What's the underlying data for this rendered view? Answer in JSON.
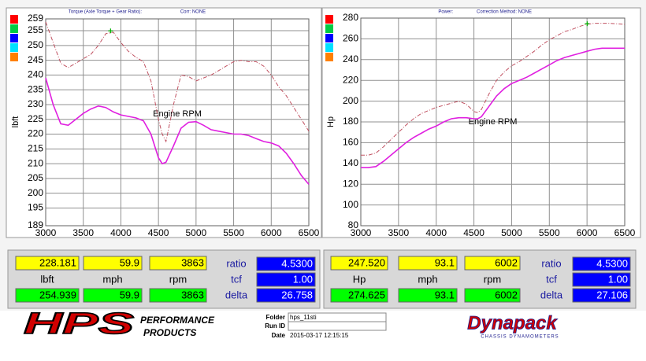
{
  "chart_data": [
    {
      "type": "line",
      "title": "Torque (Axle Torque + Gear Ratio):",
      "subtitle": "Corr: NONE",
      "x_label": "Engine RPM",
      "y_label": "lbft",
      "x": [
        3000,
        3100,
        3200,
        3300,
        3400,
        3500,
        3600,
        3700,
        3800,
        3900,
        4000,
        4100,
        4200,
        4300,
        4400,
        4500,
        4550,
        4600,
        4700,
        4800,
        4900,
        5000,
        5100,
        5200,
        5300,
        5400,
        5500,
        5600,
        5700,
        5800,
        5900,
        6000,
        6100,
        6200,
        6300,
        6400,
        6500
      ],
      "series": [
        {
          "color": "#e020e0",
          "style": "solid",
          "values": [
            239,
            230,
            223.5,
            223,
            225,
            227,
            228.5,
            229.5,
            229,
            227.5,
            226.5,
            226,
            225.5,
            224.5,
            220,
            212,
            210,
            210.5,
            216,
            222,
            224,
            224.2,
            223,
            221.5,
            221,
            220.5,
            220,
            220,
            219.5,
            218.5,
            217.5,
            217,
            216,
            213.5,
            210,
            206,
            203
          ]
        },
        {
          "color": "#c05060",
          "style": "dashdot",
          "values": [
            258,
            251,
            244,
            242.5,
            244,
            245.5,
            247,
            250,
            254,
            254.5,
            251,
            248,
            246,
            244.5,
            238,
            225,
            220,
            217.5,
            230,
            240,
            239.5,
            238,
            239,
            240,
            241.5,
            243,
            244.5,
            245,
            244.5,
            244.5,
            243,
            240,
            236,
            233,
            229,
            225,
            221
          ]
        }
      ],
      "xlim": [
        3000,
        6500
      ],
      "xticks": [
        3000,
        3500,
        4000,
        4500,
        5000,
        5500,
        6000,
        6500
      ],
      "ylim": [
        189,
        259
      ],
      "yticks": [
        259,
        255,
        250,
        245,
        240,
        235,
        230,
        225,
        220,
        215,
        210,
        205,
        200,
        195,
        189
      ],
      "grid": true
    },
    {
      "type": "line",
      "title": "Power:",
      "subtitle": "Correction Method: NONE",
      "x_label": "Engine RPM",
      "y_label": "Hp",
      "x": [
        3000,
        3100,
        3200,
        3300,
        3400,
        3500,
        3600,
        3700,
        3800,
        3900,
        4000,
        4100,
        4200,
        4300,
        4400,
        4500,
        4550,
        4600,
        4700,
        4800,
        4900,
        5000,
        5100,
        5200,
        5300,
        5400,
        5500,
        5600,
        5700,
        5800,
        5900,
        6000,
        6100,
        6200,
        6300,
        6400,
        6500
      ],
      "series": [
        {
          "color": "#e020e0",
          "style": "solid",
          "values": [
            136,
            136,
            137,
            142,
            148,
            154,
            160,
            165,
            169,
            173,
            176,
            180,
            183,
            184,
            184,
            183,
            183,
            185,
            195,
            205,
            212,
            217,
            220,
            223,
            227,
            231,
            235,
            239,
            242,
            244,
            246,
            248,
            250,
            251,
            251,
            251,
            251
          ]
        },
        {
          "color": "#c05060",
          "style": "dashdot",
          "values": [
            148,
            148,
            150,
            156,
            163,
            170,
            177,
            183,
            188,
            191,
            194,
            196,
            198,
            200,
            197,
            190,
            189,
            192,
            207,
            220,
            228,
            234,
            238,
            243,
            248,
            254,
            259,
            263,
            267,
            269,
            272,
            274,
            275,
            275,
            275,
            274.5,
            274
          ]
        }
      ],
      "xlim": [
        3000,
        6500
      ],
      "xticks": [
        3000,
        3500,
        4000,
        4500,
        5000,
        5500,
        6000,
        6500
      ],
      "ylim": [
        80,
        280
      ],
      "yticks": [
        80,
        100,
        120,
        140,
        160,
        180,
        200,
        220,
        240,
        260,
        280
      ],
      "grid": true
    }
  ],
  "readouts": [
    {
      "top": [
        "228.181",
        "59.9",
        "3863"
      ],
      "labels": [
        "lbft",
        "mph",
        "rpm"
      ],
      "bottom": [
        "254.939",
        "59.9",
        "3863"
      ],
      "side_labels": [
        "ratio",
        "tcf",
        "delta"
      ],
      "side_values": [
        "4.5300",
        "1.00",
        "26.758"
      ]
    },
    {
      "top": [
        "247.520",
        "93.1",
        "6002"
      ],
      "labels": [
        "Hp",
        "mph",
        "rpm"
      ],
      "bottom": [
        "274.625",
        "93.1",
        "6002"
      ],
      "side_labels": [
        "ratio",
        "tcf",
        "delta"
      ],
      "side_values": [
        "4.5300",
        "1.00",
        "27.106"
      ]
    }
  ],
  "footer": {
    "logo": "HPS",
    "logo_line1": "PERFORMANCE",
    "logo_line2": "PRODUCTS",
    "folder_label": "Folder",
    "folder": "hps_11sti",
    "run_label": "Run ID",
    "date_label": "Date",
    "date": "2015-03-17 12:15:15",
    "brand": "Dynapack",
    "brand_sub": "CHASSIS DYNAMOMETERS"
  }
}
